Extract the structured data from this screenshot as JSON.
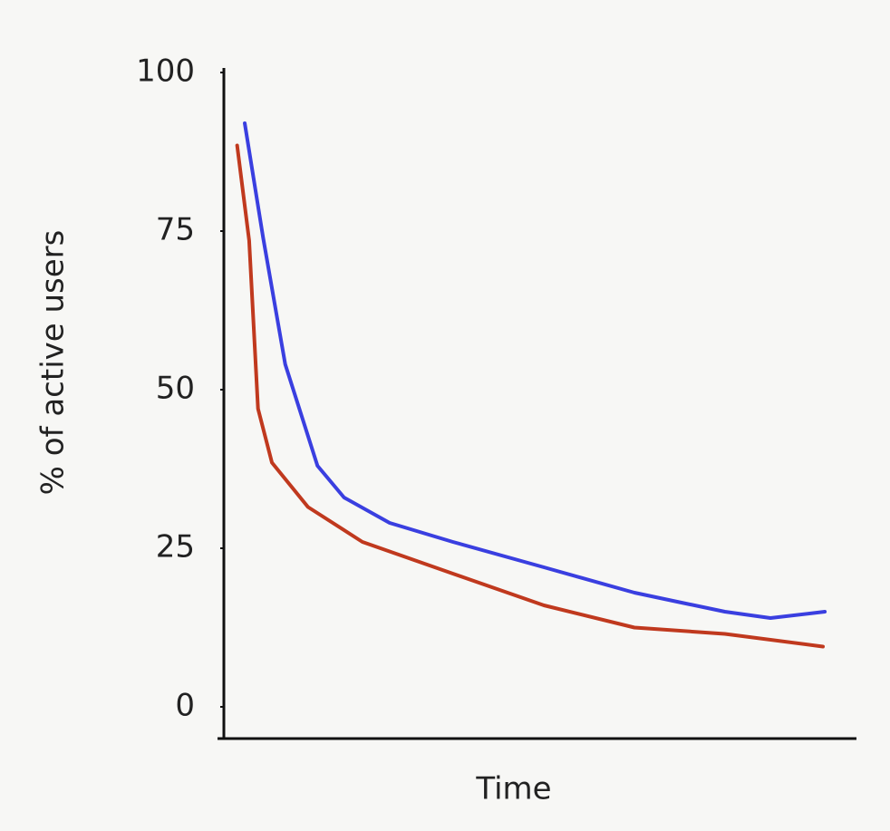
{
  "chart_data": {
    "type": "line",
    "x_label": "Time",
    "y_label": "% of active users",
    "ylim": [
      -5,
      100
    ],
    "yticks": [
      0,
      25,
      50,
      75,
      100
    ],
    "xlim": [
      0,
      100
    ],
    "series": [
      {
        "color": "#3a3fe0",
        "x": [
          3.3,
          6.2,
          9.7,
          14.8,
          19,
          26.2,
          36.2,
          50.6,
          64.9,
          72,
          79.2,
          86.4,
          95
        ],
        "values": [
          92,
          74,
          54,
          38,
          33,
          29,
          26,
          22,
          18,
          16.5,
          15,
          14,
          15
        ]
      },
      {
        "color": "#c0391e",
        "x": [
          2.1,
          4,
          5.4,
          7.6,
          13.3,
          21.9,
          36.2,
          50.6,
          64.9,
          79.2,
          94.7
        ],
        "values": [
          88.5,
          73.5,
          47,
          38.5,
          31.5,
          26,
          21,
          16,
          12.5,
          11.5,
          9.5
        ]
      }
    ]
  }
}
